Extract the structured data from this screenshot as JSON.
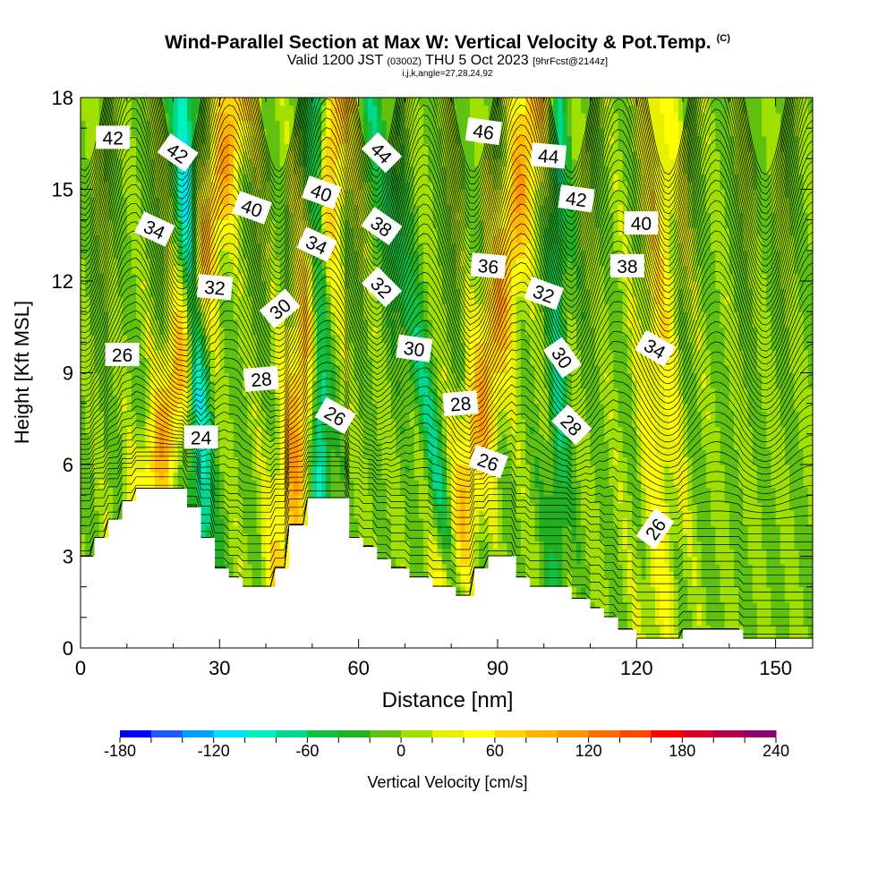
{
  "header": {
    "title": "Wind-Parallel Section at Max W: Vertical Velocity & Pot.Temp.",
    "copyright": "(C)",
    "valid_prefix": "Valid 1200 JST",
    "valid_utc": "(0300Z)",
    "valid_date": "THU 5 Oct 2023",
    "forecast": "[9hrFcst@2144z]",
    "indices": "i,j,k,angle=27,28,24,92"
  },
  "chart_data": {
    "type": "heatmap",
    "xlabel": "Distance [nm]",
    "ylabel": "Height [Kft MSL]",
    "xlim": [
      0,
      158
    ],
    "ylim": [
      0,
      18
    ],
    "x_ticks": [
      0,
      30,
      60,
      90,
      120,
      150
    ],
    "y_ticks": [
      0,
      3,
      6,
      9,
      12,
      15,
      18
    ],
    "colorbar": {
      "label": "Vertical Velocity [cm/s]",
      "min": -180,
      "max": 240,
      "step": 20,
      "tick_labels": [
        -180,
        -120,
        -60,
        0,
        60,
        120,
        180,
        240
      ],
      "colors": [
        "#0000ff",
        "#1e5aff",
        "#00a0ff",
        "#00e0ff",
        "#00f0c0",
        "#00d890",
        "#10c040",
        "#20b020",
        "#60c010",
        "#a0e000",
        "#e8f000",
        "#ffff00",
        "#ffd200",
        "#ffb400",
        "#ff9600",
        "#ff6e00",
        "#ff4600",
        "#ff0000",
        "#dc0028",
        "#b4004b",
        "#8c006e"
      ]
    },
    "terrain": [
      [
        0,
        3
      ],
      [
        3,
        3
      ],
      [
        3,
        3.6
      ],
      [
        6,
        3.6
      ],
      [
        6,
        4.2
      ],
      [
        9,
        4.2
      ],
      [
        9,
        4.8
      ],
      [
        12,
        4.8
      ],
      [
        12,
        5.2
      ],
      [
        23,
        5.2
      ],
      [
        23,
        4.6
      ],
      [
        26,
        4.6
      ],
      [
        26,
        3.6
      ],
      [
        29,
        3.6
      ],
      [
        29,
        2.6
      ],
      [
        32,
        2.6
      ],
      [
        32,
        2.3
      ],
      [
        35,
        2.3
      ],
      [
        35,
        2
      ],
      [
        42,
        2
      ],
      [
        42,
        2.6
      ],
      [
        45,
        2.6
      ],
      [
        45,
        4
      ],
      [
        49,
        4
      ],
      [
        49,
        4.9
      ],
      [
        58,
        4.9
      ],
      [
        58,
        3.6
      ],
      [
        61,
        3.6
      ],
      [
        61,
        3.3
      ],
      [
        64,
        3.3
      ],
      [
        64,
        2.9
      ],
      [
        67,
        2.9
      ],
      [
        67,
        2.6
      ],
      [
        71,
        2.6
      ],
      [
        71,
        2.3
      ],
      [
        76,
        2.3
      ],
      [
        76,
        2
      ],
      [
        81,
        2
      ],
      [
        81,
        1.7
      ],
      [
        85,
        1.7
      ],
      [
        85,
        2.6
      ],
      [
        88,
        2.6
      ],
      [
        88,
        3
      ],
      [
        94,
        3
      ],
      [
        94,
        2.3
      ],
      [
        97,
        2.3
      ],
      [
        97,
        2
      ],
      [
        106,
        2
      ],
      [
        106,
        1.6
      ],
      [
        110,
        1.6
      ],
      [
        110,
        1.3
      ],
      [
        113,
        1.3
      ],
      [
        113,
        1
      ],
      [
        116,
        1
      ],
      [
        116,
        0.6
      ],
      [
        120,
        0.6
      ],
      [
        120,
        0.3
      ],
      [
        130,
        0.3
      ],
      [
        130,
        0.6
      ],
      [
        143,
        0.6
      ],
      [
        143,
        0.3
      ],
      [
        158,
        0.3
      ]
    ],
    "updraft_bands": [
      {
        "x_bottom": 8,
        "x_top": 34,
        "w": 90
      },
      {
        "x_bottom": 42,
        "x_top": 55,
        "w": 100
      },
      {
        "x_bottom": 78,
        "x_top": 98,
        "w": 90
      },
      {
        "x_bottom": 125,
        "x_top": 125,
        "w": 50
      }
    ],
    "downdraft_bands": [
      {
        "x_bottom": 28,
        "x_top": 22,
        "w": -110
      },
      {
        "x_bottom": 52,
        "x_top": 51,
        "w": -120
      },
      {
        "x_bottom": 83,
        "x_top": 63,
        "w": -70
      },
      {
        "x_bottom": 103,
        "x_top": 103,
        "w": -60
      }
    ],
    "contour_labels": [
      {
        "text": "42",
        "x": 7,
        "y": 16.7,
        "rot": 0
      },
      {
        "text": "42",
        "x": 21,
        "y": 16.2,
        "rot": 35
      },
      {
        "text": "44",
        "x": 65,
        "y": 16.2,
        "rot": 45
      },
      {
        "text": "46",
        "x": 87,
        "y": 16.9,
        "rot": 8
      },
      {
        "text": "44",
        "x": 101,
        "y": 16.1,
        "rot": 5
      },
      {
        "text": "42",
        "x": 107,
        "y": 14.7,
        "rot": 8
      },
      {
        "text": "40",
        "x": 52,
        "y": 14.9,
        "rot": 20
      },
      {
        "text": "40",
        "x": 37,
        "y": 14.4,
        "rot": 20
      },
      {
        "text": "40",
        "x": 121,
        "y": 13.9,
        "rot": 0
      },
      {
        "text": "34",
        "x": 16,
        "y": 13.7,
        "rot": 25
      },
      {
        "text": "38",
        "x": 65,
        "y": 13.8,
        "rot": 35
      },
      {
        "text": "38",
        "x": 118,
        "y": 12.5,
        "rot": 0
      },
      {
        "text": "34",
        "x": 51,
        "y": 13.2,
        "rot": 25
      },
      {
        "text": "36",
        "x": 88,
        "y": 12.5,
        "rot": 5
      },
      {
        "text": "32",
        "x": 29,
        "y": 11.8,
        "rot": 5
      },
      {
        "text": "32",
        "x": 65,
        "y": 11.8,
        "rot": 45
      },
      {
        "text": "32",
        "x": 100,
        "y": 11.6,
        "rot": 20
      },
      {
        "text": "30",
        "x": 43,
        "y": 11.1,
        "rot": -40
      },
      {
        "text": "34",
        "x": 124,
        "y": 9.8,
        "rot": 30
      },
      {
        "text": "30",
        "x": 72,
        "y": 9.8,
        "rot": 8
      },
      {
        "text": "26",
        "x": 9,
        "y": 9.6,
        "rot": 0
      },
      {
        "text": "30",
        "x": 104,
        "y": 9.5,
        "rot": 55
      },
      {
        "text": "28",
        "x": 39,
        "y": 8.8,
        "rot": -5
      },
      {
        "text": "28",
        "x": 82,
        "y": 8.0,
        "rot": -5
      },
      {
        "text": "26",
        "x": 55,
        "y": 7.6,
        "rot": 30
      },
      {
        "text": "28",
        "x": 106,
        "y": 7.3,
        "rot": 45
      },
      {
        "text": "24",
        "x": 26,
        "y": 6.9,
        "rot": 0
      },
      {
        "text": "26",
        "x": 88,
        "y": 6.1,
        "rot": 20
      },
      {
        "text": "26",
        "x": 124,
        "y": 3.9,
        "rot": -55
      }
    ]
  }
}
